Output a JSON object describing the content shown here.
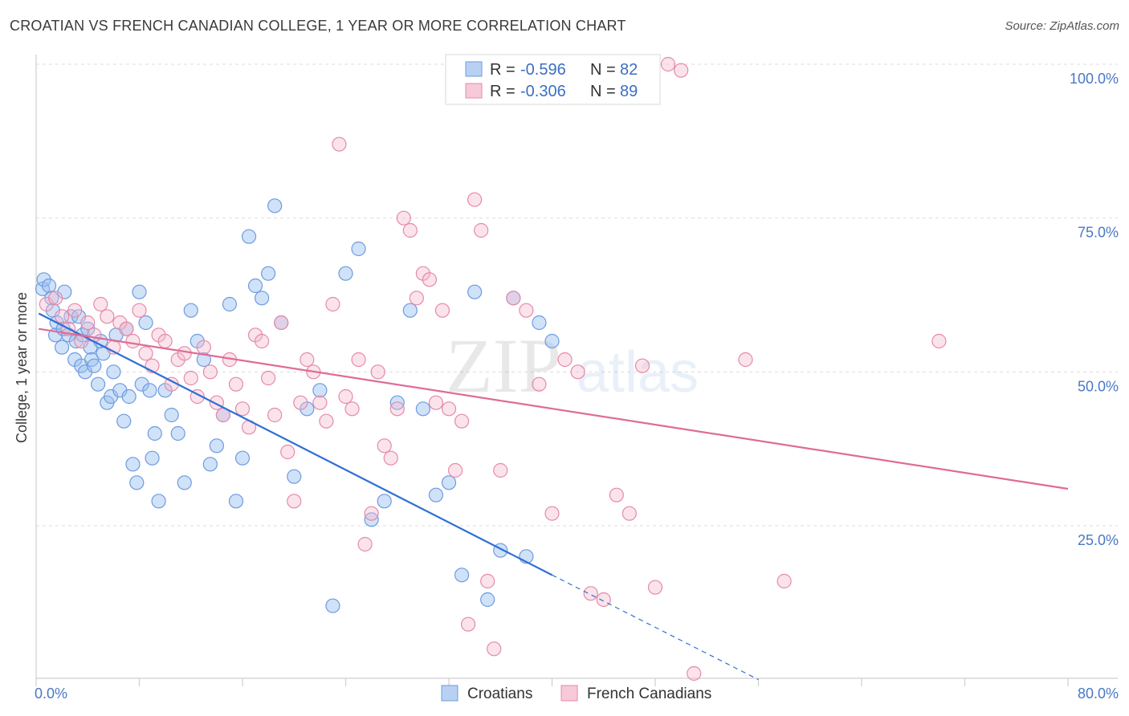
{
  "title": "CROATIAN VS FRENCH CANADIAN COLLEGE, 1 YEAR OR MORE CORRELATION CHART",
  "source": "Source: ZipAtlas.com",
  "watermark": {
    "zip": "ZIP",
    "atlas": "atlas"
  },
  "legend": {
    "r_label": "R = ",
    "n_label": "N = ",
    "rows": [
      {
        "r": "-0.596",
        "n": "82",
        "fill": "#b8d1f3",
        "stroke": "#6d9be0"
      },
      {
        "r": "-0.306",
        "n": "89",
        "fill": "#f8c9d8",
        "stroke": "#e58aa8"
      }
    ]
  },
  "bottom_legend": [
    {
      "label": "Croatians",
      "fill": "#b8d1f3",
      "stroke": "#6d9be0"
    },
    {
      "label": "French Canadians",
      "fill": "#f8c9d8",
      "stroke": "#e58aa8"
    }
  ],
  "chart_data": {
    "type": "scatter",
    "title": "CROATIAN VS FRENCH CANADIAN COLLEGE, 1 YEAR OR MORE CORRELATION CHART",
    "xlabel": "",
    "ylabel": "College, 1 year or more",
    "xlim": [
      0,
      80
    ],
    "ylim": [
      0,
      102
    ],
    "x_tick_labels": [
      "0.0%",
      "80.0%"
    ],
    "y_ticks": [
      25,
      50,
      75,
      100
    ],
    "y_tick_labels": [
      "25.0%",
      "50.0%",
      "75.0%",
      "100.0%"
    ],
    "grid": true,
    "colors": {
      "croatians": "#2f6fd6",
      "french_canadians": "#e06b97"
    },
    "series": [
      {
        "name": "Croatians",
        "trend": {
          "x0": 0.2,
          "y0": 59.5,
          "x1": 40.0,
          "y1": 17.0,
          "dash_to_x": 56.0,
          "dash_to_y": 0.0
        },
        "points": [
          [
            0.5,
            63.5
          ],
          [
            0.6,
            65
          ],
          [
            1.0,
            64
          ],
          [
            1.2,
            62
          ],
          [
            1.3,
            60
          ],
          [
            1.5,
            56
          ],
          [
            1.6,
            58
          ],
          [
            2.0,
            54
          ],
          [
            2.1,
            57
          ],
          [
            2.2,
            63
          ],
          [
            2.5,
            56
          ],
          [
            2.7,
            59
          ],
          [
            3.0,
            52
          ],
          [
            3.1,
            55
          ],
          [
            3.3,
            59
          ],
          [
            3.5,
            51
          ],
          [
            3.6,
            56
          ],
          [
            3.8,
            50
          ],
          [
            4.0,
            57
          ],
          [
            4.2,
            54
          ],
          [
            4.3,
            52
          ],
          [
            4.5,
            51
          ],
          [
            4.8,
            48
          ],
          [
            5.0,
            55
          ],
          [
            5.2,
            53
          ],
          [
            5.5,
            45
          ],
          [
            5.8,
            46
          ],
          [
            6.0,
            50
          ],
          [
            6.2,
            56
          ],
          [
            6.5,
            47
          ],
          [
            6.8,
            42
          ],
          [
            7.0,
            57
          ],
          [
            7.2,
            46
          ],
          [
            7.5,
            35
          ],
          [
            7.8,
            32
          ],
          [
            8.0,
            63
          ],
          [
            8.2,
            48
          ],
          [
            8.5,
            58
          ],
          [
            8.8,
            47
          ],
          [
            9.0,
            36
          ],
          [
            9.2,
            40
          ],
          [
            9.5,
            29
          ],
          [
            10.0,
            47
          ],
          [
            10.5,
            43
          ],
          [
            11.0,
            40
          ],
          [
            11.5,
            32
          ],
          [
            12.0,
            60
          ],
          [
            12.5,
            55
          ],
          [
            13.0,
            52
          ],
          [
            13.5,
            35
          ],
          [
            14.0,
            38
          ],
          [
            14.5,
            43
          ],
          [
            15.0,
            61
          ],
          [
            15.5,
            29
          ],
          [
            16.0,
            36
          ],
          [
            16.5,
            72
          ],
          [
            17.0,
            64
          ],
          [
            17.5,
            62
          ],
          [
            18.0,
            66
          ],
          [
            18.5,
            77
          ],
          [
            19.0,
            58
          ],
          [
            20.0,
            33
          ],
          [
            21.0,
            44
          ],
          [
            22.0,
            47
          ],
          [
            23.0,
            12
          ],
          [
            24.0,
            66
          ],
          [
            25.0,
            70
          ],
          [
            26.0,
            26
          ],
          [
            27.0,
            29
          ],
          [
            28.0,
            45
          ],
          [
            29.0,
            60
          ],
          [
            30.0,
            44
          ],
          [
            31.0,
            30
          ],
          [
            32.0,
            32
          ],
          [
            33.0,
            17
          ],
          [
            34.0,
            63
          ],
          [
            35.0,
            13
          ],
          [
            36.0,
            21
          ],
          [
            37.0,
            62
          ],
          [
            38.0,
            20
          ],
          [
            39.0,
            58
          ],
          [
            40.0,
            55
          ]
        ]
      },
      {
        "name": "French Canadians",
        "trend": {
          "x0": 0.2,
          "y0": 57.0,
          "x1": 80.0,
          "y1": 31.0
        },
        "points": [
          [
            0.8,
            61
          ],
          [
            1.5,
            62
          ],
          [
            2.0,
            59
          ],
          [
            2.5,
            57
          ],
          [
            3.0,
            60
          ],
          [
            3.5,
            55
          ],
          [
            4.0,
            58
          ],
          [
            4.5,
            56
          ],
          [
            5.0,
            61
          ],
          [
            5.5,
            59
          ],
          [
            6.0,
            54
          ],
          [
            6.5,
            58
          ],
          [
            7.0,
            57
          ],
          [
            7.5,
            55
          ],
          [
            8.0,
            60
          ],
          [
            8.5,
            53
          ],
          [
            9.0,
            51
          ],
          [
            9.5,
            56
          ],
          [
            10.0,
            55
          ],
          [
            10.5,
            48
          ],
          [
            11.0,
            52
          ],
          [
            11.5,
            53
          ],
          [
            12.0,
            49
          ],
          [
            12.5,
            46
          ],
          [
            13.0,
            54
          ],
          [
            13.5,
            50
          ],
          [
            14.0,
            45
          ],
          [
            14.5,
            43
          ],
          [
            15.0,
            52
          ],
          [
            15.5,
            48
          ],
          [
            16.0,
            44
          ],
          [
            16.5,
            41
          ],
          [
            17.0,
            56
          ],
          [
            17.5,
            55
          ],
          [
            18.0,
            49
          ],
          [
            18.5,
            43
          ],
          [
            19.0,
            58
          ],
          [
            19.5,
            37
          ],
          [
            20.0,
            29
          ],
          [
            20.5,
            45
          ],
          [
            21.0,
            52
          ],
          [
            21.5,
            50
          ],
          [
            22.0,
            45
          ],
          [
            22.5,
            42
          ],
          [
            23.0,
            61
          ],
          [
            23.5,
            87
          ],
          [
            24.0,
            46
          ],
          [
            24.5,
            44
          ],
          [
            25.0,
            52
          ],
          [
            25.5,
            22
          ],
          [
            26.0,
            27
          ],
          [
            26.5,
            50
          ],
          [
            27.0,
            38
          ],
          [
            27.5,
            36
          ],
          [
            28.0,
            44
          ],
          [
            28.5,
            75
          ],
          [
            29.0,
            73
          ],
          [
            29.5,
            62
          ],
          [
            30.0,
            66
          ],
          [
            30.5,
            65
          ],
          [
            31.0,
            45
          ],
          [
            31.5,
            60
          ],
          [
            32.0,
            44
          ],
          [
            32.5,
            34
          ],
          [
            33.0,
            42
          ],
          [
            33.5,
            9
          ],
          [
            34.0,
            78
          ],
          [
            34.5,
            73
          ],
          [
            35.0,
            16
          ],
          [
            35.5,
            5
          ],
          [
            36.0,
            34
          ],
          [
            37.0,
            62
          ],
          [
            38.0,
            60
          ],
          [
            39.0,
            48
          ],
          [
            40.0,
            27
          ],
          [
            41.0,
            52
          ],
          [
            42.0,
            50
          ],
          [
            43.0,
            14
          ],
          [
            44.0,
            13
          ],
          [
            45.0,
            30
          ],
          [
            46.0,
            27
          ],
          [
            47.0,
            51
          ],
          [
            48.0,
            15
          ],
          [
            49.0,
            100
          ],
          [
            50.0,
            99
          ],
          [
            51.0,
            1
          ],
          [
            55.0,
            52
          ],
          [
            58.0,
            16
          ],
          [
            70.0,
            55
          ]
        ]
      }
    ]
  }
}
